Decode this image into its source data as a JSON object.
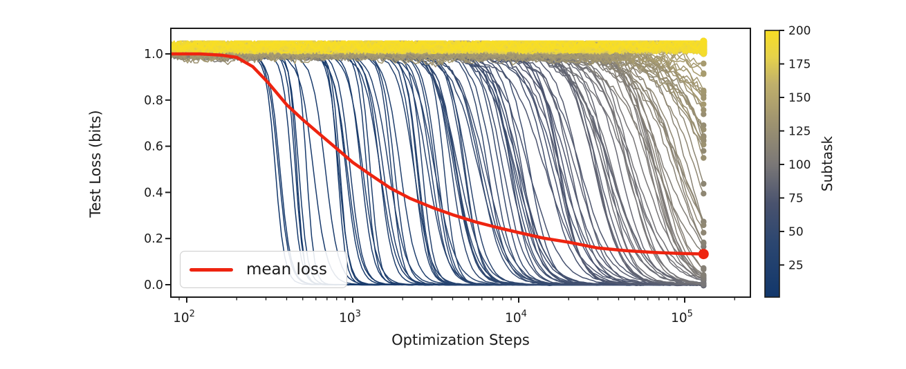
{
  "chart_data": {
    "type": "line",
    "title": "",
    "xlabel": "Optimization Steps",
    "ylabel": "Test Loss (bits)",
    "xscale": "log",
    "xlim": [
      80,
      250000
    ],
    "ylim": [
      -0.054,
      1.104
    ],
    "grid": false,
    "x_tick_base": "10",
    "x_tick_exponents": [
      2,
      3,
      4,
      5
    ],
    "y_ticks": [
      "0.0",
      "0.2",
      "0.4",
      "0.6",
      "0.8",
      "1.0"
    ],
    "y_tick_values": [
      0.0,
      0.2,
      0.4,
      0.6,
      0.8,
      1.0
    ],
    "legend": {
      "label": "mean loss",
      "color": "#ee2410",
      "position": "lower-left"
    },
    "colorbar": {
      "label": "Subtask",
      "min": 1,
      "max": 200,
      "ticks": [
        25,
        50,
        75,
        100,
        125,
        150,
        175,
        200
      ],
      "colormap": "cividis",
      "gradient_stops": [
        {
          "t": 0.0,
          "color": "#12376b"
        },
        {
          "t": 0.2,
          "color": "#2b4670"
        },
        {
          "t": 0.35,
          "color": "#49526e"
        },
        {
          "t": 0.5,
          "color": "#7b7877"
        },
        {
          "t": 0.65,
          "color": "#9d9270"
        },
        {
          "t": 0.8,
          "color": "#c0b06b"
        },
        {
          "t": 0.9,
          "color": "#e6d24b"
        },
        {
          "t": 1.0,
          "color": "#f8de24"
        }
      ]
    },
    "mean_loss": {
      "name": "mean loss",
      "color": "#ee2410",
      "x": [
        80,
        120,
        160,
        200,
        250,
        310,
        400,
        500,
        650,
        800,
        1000,
        1300,
        1700,
        2200,
        3000,
        4000,
        5500,
        7500,
        10000,
        14000,
        20000,
        30000,
        45000,
        65000,
        90000,
        115000,
        130000
      ],
      "y": [
        1.0,
        1.0,
        0.995,
        0.985,
        0.945,
        0.875,
        0.78,
        0.715,
        0.645,
        0.59,
        0.53,
        0.473,
        0.417,
        0.375,
        0.335,
        0.303,
        0.272,
        0.247,
        0.226,
        0.202,
        0.184,
        0.159,
        0.147,
        0.14,
        0.136,
        0.134,
        0.133
      ],
      "final_point": {
        "step": 130000,
        "loss": 0.133
      }
    },
    "subtask_curves": {
      "count": 200,
      "color_by": "subtask index 1-200 via colorbar colormap",
      "final_step": 130000,
      "initial_loss": 1.0,
      "solved_final_loss": 0.0,
      "first_transition_step": 330,
      "transition_model": "each subtask's loss stays near 1.0 then drops sigmoidally to 0; drop times are roughly log-spaced from ~330 steps (subtask 1, dark blue) to beyond 130000 steps; subtasks above ~140 (yellow) never drop and remain a noisy band at loss ~1.0; later subtasks are noisier and several end mid-transition (~0.85, ~0.55, ~0.2) with end-point dots",
      "end_markers": "filled circle at final step for every curve"
    }
  }
}
